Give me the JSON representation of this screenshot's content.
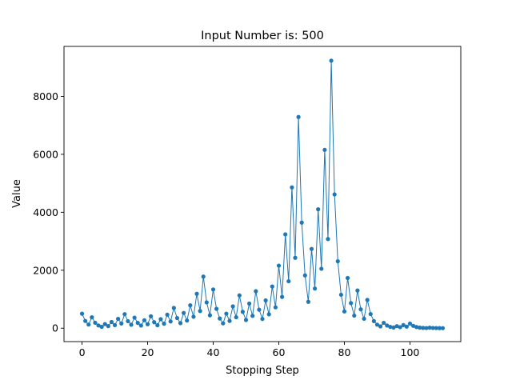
{
  "chart_data": {
    "type": "line",
    "title": "Input Number is: 500",
    "xlabel": "Stopping Step",
    "ylabel": "Value",
    "xlim": [
      -5.5,
      115.5
    ],
    "ylim": [
      -463,
      9724
    ],
    "xticks": [
      0,
      20,
      40,
      60,
      80,
      100
    ],
    "yticks": [
      0,
      2000,
      4000,
      6000,
      8000
    ],
    "grid": false,
    "line_color": "#1f77b4",
    "marker": "circle",
    "series": [
      {
        "values": [
          500,
          250,
          125,
          376,
          188,
          94,
          47,
          142,
          71,
          214,
          107,
          322,
          161,
          484,
          242,
          121,
          364,
          182,
          91,
          274,
          137,
          412,
          206,
          103,
          310,
          155,
          466,
          233,
          700,
          350,
          175,
          526,
          263,
          790,
          395,
          1186,
          593,
          1780,
          890,
          445,
          1336,
          668,
          334,
          167,
          502,
          251,
          754,
          377,
          1132,
          566,
          283,
          850,
          425,
          1276,
          638,
          319,
          958,
          479,
          1438,
          719,
          2158,
          1079,
          3238,
          1619,
          4858,
          2429,
          7288,
          3644,
          1822,
          911,
          2734,
          1367,
          4102,
          2051,
          6154,
          3077,
          9232,
          4616,
          2308,
          1154,
          577,
          1732,
          866,
          433,
          1300,
          650,
          325,
          976,
          488,
          244,
          122,
          61,
          184,
          92,
          46,
          23,
          70,
          35,
          106,
          53,
          160,
          80,
          40,
          20,
          10,
          5,
          16,
          8,
          4,
          2,
          1
        ]
      }
    ]
  }
}
